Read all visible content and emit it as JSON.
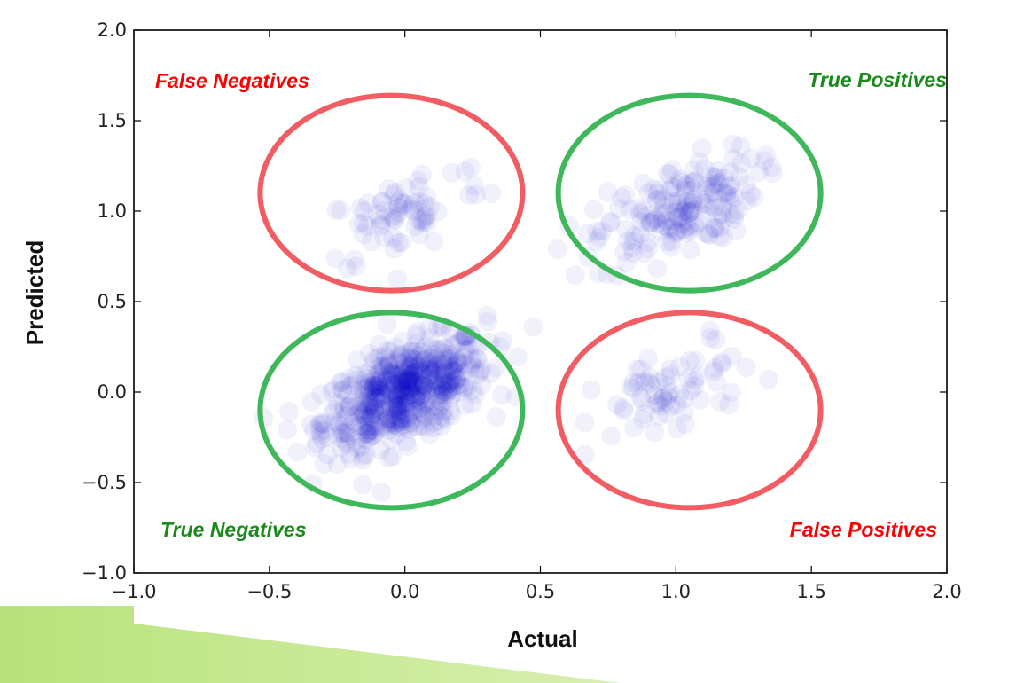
{
  "chart_data": {
    "type": "scatter",
    "xlabel": "Actual",
    "ylabel": "Predicted",
    "xlim": [
      -1.0,
      2.0
    ],
    "ylim": [
      -1.0,
      2.0
    ],
    "xticks": [
      "−1.0",
      "−0.5",
      "0.0",
      "0.5",
      "1.0",
      "1.5",
      "2.0"
    ],
    "yticks": [
      "−1.0",
      "−0.5",
      "0.0",
      "0.5",
      "1.0",
      "1.5",
      "2.0"
    ],
    "xtick_values": [
      -1.0,
      -0.5,
      0.0,
      0.5,
      1.0,
      1.5,
      2.0
    ],
    "ytick_values": [
      -1.0,
      -0.5,
      0.0,
      0.5,
      1.0,
      1.5,
      2.0
    ],
    "grid": false,
    "point_color": "#0000cc",
    "clusters": [
      {
        "actual": 0.0,
        "predicted": 0.0,
        "spread_x": 0.15,
        "spread_y": 0.15,
        "count": 600
      },
      {
        "actual": 0.0,
        "predicted": 1.0,
        "spread_x": 0.15,
        "spread_y": 0.15,
        "count": 70
      },
      {
        "actual": 1.0,
        "predicted": 1.0,
        "spread_x": 0.15,
        "spread_y": 0.15,
        "count": 180
      },
      {
        "actual": 1.0,
        "predicted": 0.0,
        "spread_x": 0.15,
        "spread_y": 0.15,
        "count": 70
      }
    ],
    "annotations": [
      {
        "text": "False Negatives",
        "color": "#ff0000",
        "ring_color": "#f25c63",
        "center": [
          -0.05,
          1.1
        ]
      },
      {
        "text": "True Positives",
        "color": "#1a8a1a",
        "ring_color": "#3fb85c",
        "center": [
          1.05,
          1.1
        ]
      },
      {
        "text": "True Negatives",
        "color": "#1a8a1a",
        "ring_color": "#3fb85c",
        "center": [
          -0.05,
          -0.1
        ]
      },
      {
        "text": "False Positives",
        "color": "#ff0000",
        "ring_color": "#f25c63",
        "center": [
          1.05,
          -0.1
        ]
      }
    ]
  }
}
